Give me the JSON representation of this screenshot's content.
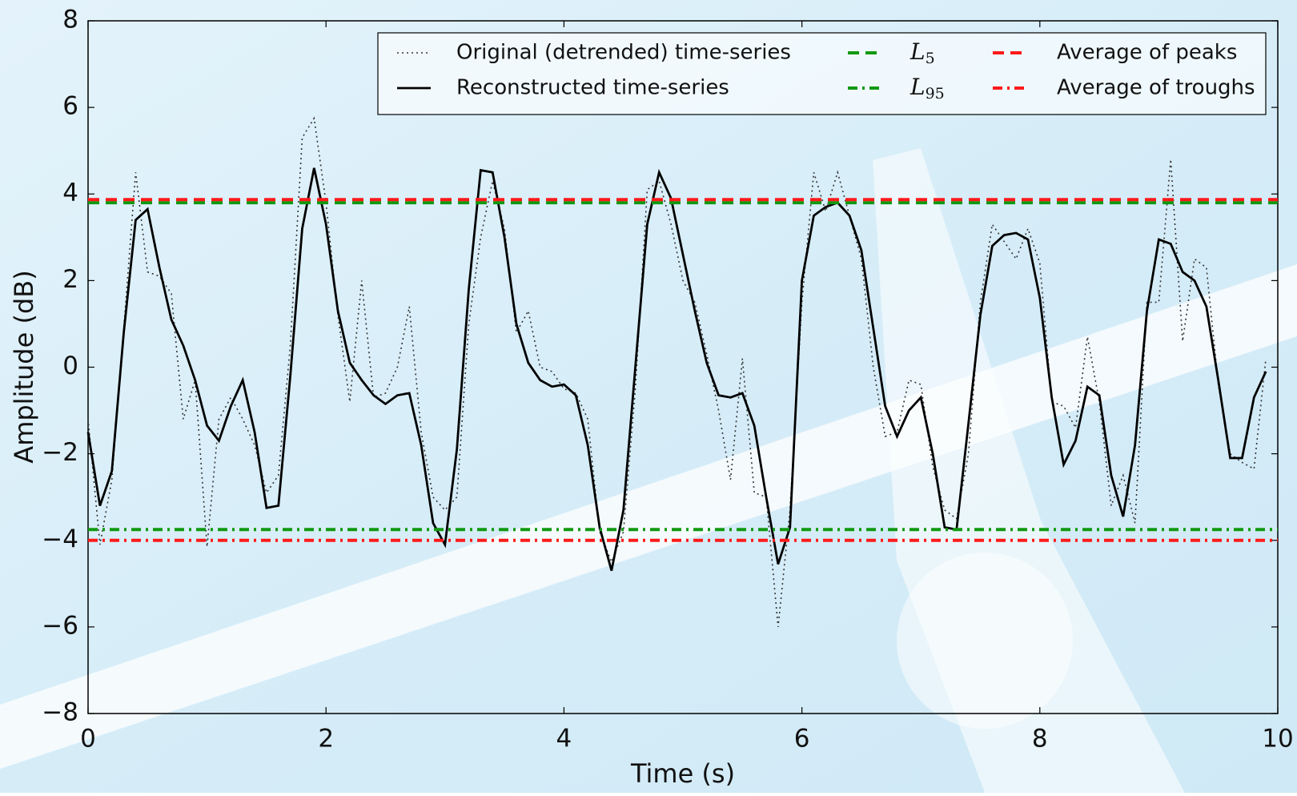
{
  "chart_data": {
    "type": "line",
    "xlabel": "Time (s)",
    "ylabel": "Amplitude (dB)",
    "xlim": [
      0,
      10
    ],
    "ylim": [
      -8,
      8
    ],
    "xticks": [
      0,
      2,
      4,
      6,
      8,
      10
    ],
    "yticks": [
      {
        "value": -8,
        "label": "−8"
      },
      {
        "value": -6,
        "label": "−6"
      },
      {
        "value": -4,
        "label": "−4"
      },
      {
        "value": -2,
        "label": "−2"
      },
      0,
      2,
      4,
      6,
      8
    ],
    "x": [
      0,
      0.1,
      0.2,
      0.3,
      0.4,
      0.5,
      0.6,
      0.7,
      0.8,
      0.9,
      1.0,
      1.1,
      1.2,
      1.3,
      1.4,
      1.5,
      1.6,
      1.7,
      1.8,
      1.9,
      2.0,
      2.1,
      2.2,
      2.3,
      2.4,
      2.5,
      2.6,
      2.7,
      2.8,
      2.9,
      3.0,
      3.1,
      3.2,
      3.3,
      3.4,
      3.5,
      3.6,
      3.7,
      3.8,
      3.9,
      4.0,
      4.1,
      4.2,
      4.3,
      4.4,
      4.5,
      4.6,
      4.7,
      4.8,
      4.9,
      5.0,
      5.1,
      5.2,
      5.3,
      5.4,
      5.5,
      5.6,
      5.7,
      5.8,
      5.9,
      6.0,
      6.1,
      6.2,
      6.3,
      6.4,
      6.5,
      6.6,
      6.7,
      6.8,
      6.9,
      7.0,
      7.1,
      7.2,
      7.3,
      7.4,
      7.5,
      7.6,
      7.7,
      7.8,
      7.9,
      8.0,
      8.1,
      8.2,
      8.3,
      8.4,
      8.5,
      8.6,
      8.7,
      8.8,
      8.9,
      9.0,
      9.1,
      9.2,
      9.3,
      9.4,
      9.5,
      9.6,
      9.7,
      9.8,
      9.9
    ],
    "series": [
      {
        "name": "Original (detrended) time-series",
        "color": "#333333",
        "style": "dotted",
        "values": [
          -1.2,
          -4.1,
          -2.6,
          0.9,
          4.5,
          2.2,
          2.1,
          1.7,
          -1.2,
          -0.3,
          -4.15,
          -1.2,
          -0.7,
          -1.2,
          -1.8,
          -2.9,
          -2.5,
          0.5,
          5.3,
          5.75,
          3.8,
          1.2,
          -0.8,
          2.0,
          -0.7,
          -0.6,
          0.0,
          1.4,
          -1.5,
          -3.0,
          -3.3,
          -3.0,
          1.0,
          3.0,
          4.3,
          3.2,
          0.8,
          1.3,
          0.0,
          -0.1,
          -0.5,
          -0.6,
          -1.2,
          -3.8,
          -4.5,
          -3.8,
          -0.5,
          4.1,
          4.3,
          3.3,
          2.0,
          1.5,
          0.3,
          -1.0,
          -2.6,
          0.2,
          -2.9,
          -3.0,
          -6.0,
          -3.3,
          1.5,
          4.5,
          3.6,
          4.5,
          3.5,
          2.5,
          0.0,
          -1.6,
          -1.5,
          -0.3,
          -0.4,
          -2.3,
          -3.3,
          -3.5,
          -2.0,
          1.5,
          3.3,
          2.9,
          2.5,
          3.2,
          2.4,
          -0.8,
          -0.9,
          -1.4,
          0.7,
          -0.8,
          -3.2,
          -2.5,
          -3.6,
          1.5,
          1.5,
          4.8,
          0.6,
          2.5,
          2.3,
          -0.4,
          -2.0,
          -2.2,
          -2.35,
          0.2
        ]
      },
      {
        "name": "Reconstructed time-series",
        "color": "#000000",
        "style": "solid",
        "values": [
          -1.5,
          -3.2,
          -2.4,
          0.8,
          3.4,
          3.65,
          2.3,
          1.1,
          0.5,
          -0.3,
          -1.35,
          -1.7,
          -0.9,
          -0.3,
          -1.5,
          -3.25,
          -3.2,
          -0.2,
          3.2,
          4.6,
          3.3,
          1.3,
          0.1,
          -0.3,
          -0.65,
          -0.85,
          -0.65,
          -0.6,
          -1.8,
          -3.6,
          -4.1,
          -1.9,
          1.8,
          4.55,
          4.5,
          3.0,
          1.0,
          0.1,
          -0.3,
          -0.45,
          -0.4,
          -0.65,
          -1.8,
          -3.7,
          -4.7,
          -3.3,
          0.0,
          3.3,
          4.5,
          3.9,
          2.6,
          1.3,
          0.1,
          -0.65,
          -0.7,
          -0.6,
          -1.35,
          -3.0,
          -4.55,
          -3.7,
          2.0,
          3.5,
          3.7,
          3.8,
          3.5,
          2.7,
          0.9,
          -0.9,
          -1.6,
          -1.0,
          -0.7,
          -2.0,
          -3.7,
          -3.75,
          -1.3,
          1.2,
          2.8,
          3.05,
          3.1,
          2.95,
          1.6,
          -0.7,
          -2.25,
          -1.7,
          -0.45,
          -0.65,
          -2.5,
          -3.45,
          -1.8,
          1.3,
          2.95,
          2.85,
          2.2,
          2.0,
          1.4,
          -0.3,
          -2.1,
          -2.1,
          -0.7,
          -0.1
        ]
      }
    ],
    "hlines": [
      {
        "name": "L",
        "subscript": "5",
        "color": "#119911",
        "style": "dashed",
        "value": 3.8
      },
      {
        "name": "L",
        "subscript": "95",
        "color": "#119911",
        "style": "dashdot",
        "value": -3.75
      },
      {
        "name": "Average of peaks",
        "color": "#ff1a1a",
        "style": "dashed",
        "value": 3.87
      },
      {
        "name": "Average of troughs",
        "color": "#ff1a1a",
        "style": "dashdot",
        "value": -4.0
      }
    ]
  }
}
